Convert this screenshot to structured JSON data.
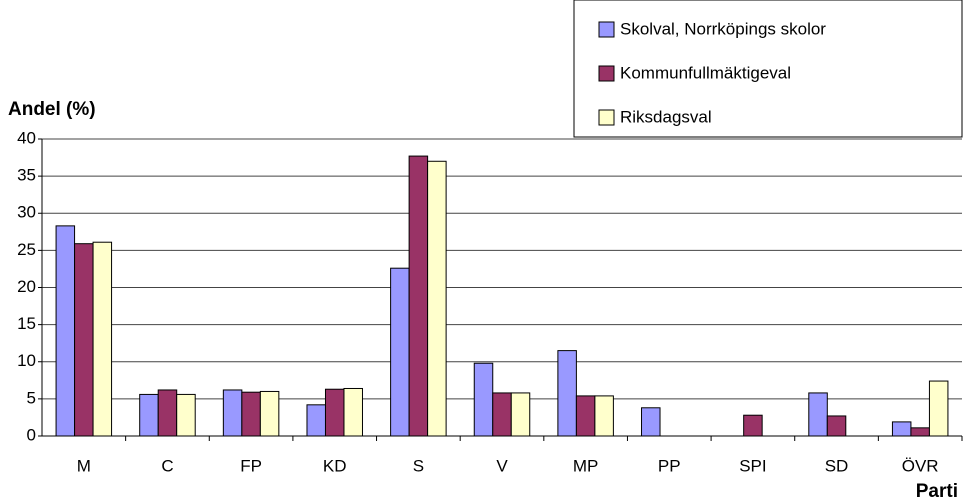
{
  "chart_data": {
    "type": "bar",
    "categories": [
      "M",
      "C",
      "FP",
      "KD",
      "S",
      "V",
      "MP",
      "PP",
      "SPI",
      "SD",
      "ÖVR"
    ],
    "series": [
      {
        "name": "Skolval, Norrköpings skolor",
        "color": "#9999ff",
        "values": [
          28.3,
          5.6,
          6.2,
          4.2,
          22.6,
          9.8,
          11.5,
          3.8,
          null,
          5.8,
          1.9
        ]
      },
      {
        "name": "Kommunfullmäktigeval",
        "color": "#993366",
        "values": [
          25.9,
          6.2,
          5.9,
          6.3,
          37.7,
          5.8,
          5.4,
          null,
          2.8,
          2.7,
          1.1
        ]
      },
      {
        "name": "Riksdagsval",
        "color": "#ffffcc",
        "values": [
          26.1,
          5.6,
          6.0,
          6.4,
          37.0,
          5.8,
          5.4,
          null,
          null,
          null,
          7.4
        ]
      }
    ],
    "y_label": "Andel (%)",
    "x_label": "Parti",
    "ylim": [
      0,
      40
    ],
    "yticks": [
      0,
      5,
      10,
      15,
      20,
      25,
      30,
      35,
      40
    ],
    "grid": true
  }
}
